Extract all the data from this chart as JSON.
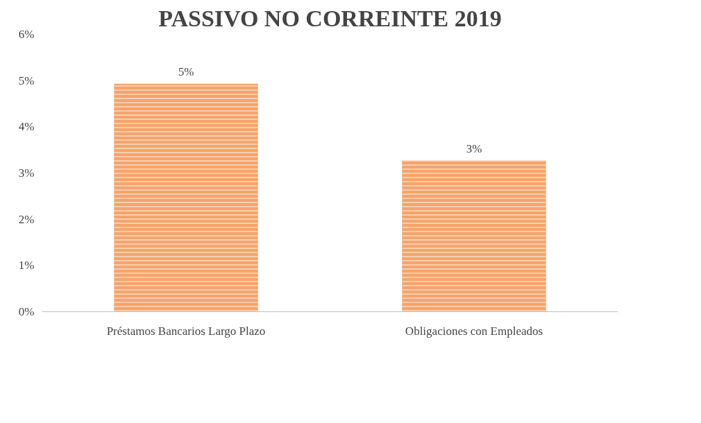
{
  "chart_data": {
    "type": "bar",
    "title": "PASSIVO NO CORREINTE 2019",
    "categories": [
      "Préstamos Bancarios Largo Plazo",
      "Obligaciones con Empleados"
    ],
    "series": [
      {
        "color": "#f4a46c",
        "values": [
          4.93,
          3.27
        ],
        "value_labels": [
          "5%",
          "3%"
        ]
      }
    ],
    "ylim": [
      0,
      6
    ],
    "yticks": [
      {
        "value": 0,
        "label": "0%"
      },
      {
        "value": 1,
        "label": "1%"
      },
      {
        "value": 2,
        "label": "2%"
      },
      {
        "value": 3,
        "label": "3%"
      },
      {
        "value": 4,
        "label": "4%"
      },
      {
        "value": 5,
        "label": "5%"
      },
      {
        "value": 6,
        "label": "6%"
      }
    ],
    "grid": false
  }
}
